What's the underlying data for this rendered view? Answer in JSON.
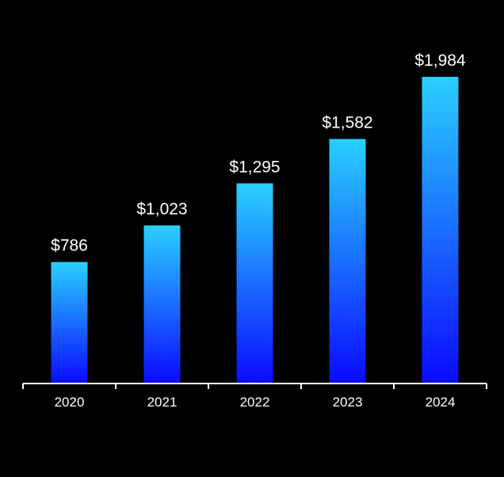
{
  "chart_data": {
    "type": "bar",
    "categories": [
      "2020",
      "2021",
      "2022",
      "2023",
      "2024"
    ],
    "values": [
      786,
      1023,
      1295,
      1582,
      1984
    ],
    "data_labels": [
      "$786",
      "$1,023",
      "$1,295",
      "$1,582",
      "$1,984"
    ],
    "title": "",
    "xlabel": "",
    "ylabel": "",
    "ylim": [
      0,
      1984
    ],
    "grid": false,
    "legend": "none",
    "colors": {
      "background": "#000000",
      "bar_top": "#2ad0ff",
      "bar_bottom": "#0a0aff",
      "axis": "#ffffff",
      "text": "#ffffff"
    }
  }
}
